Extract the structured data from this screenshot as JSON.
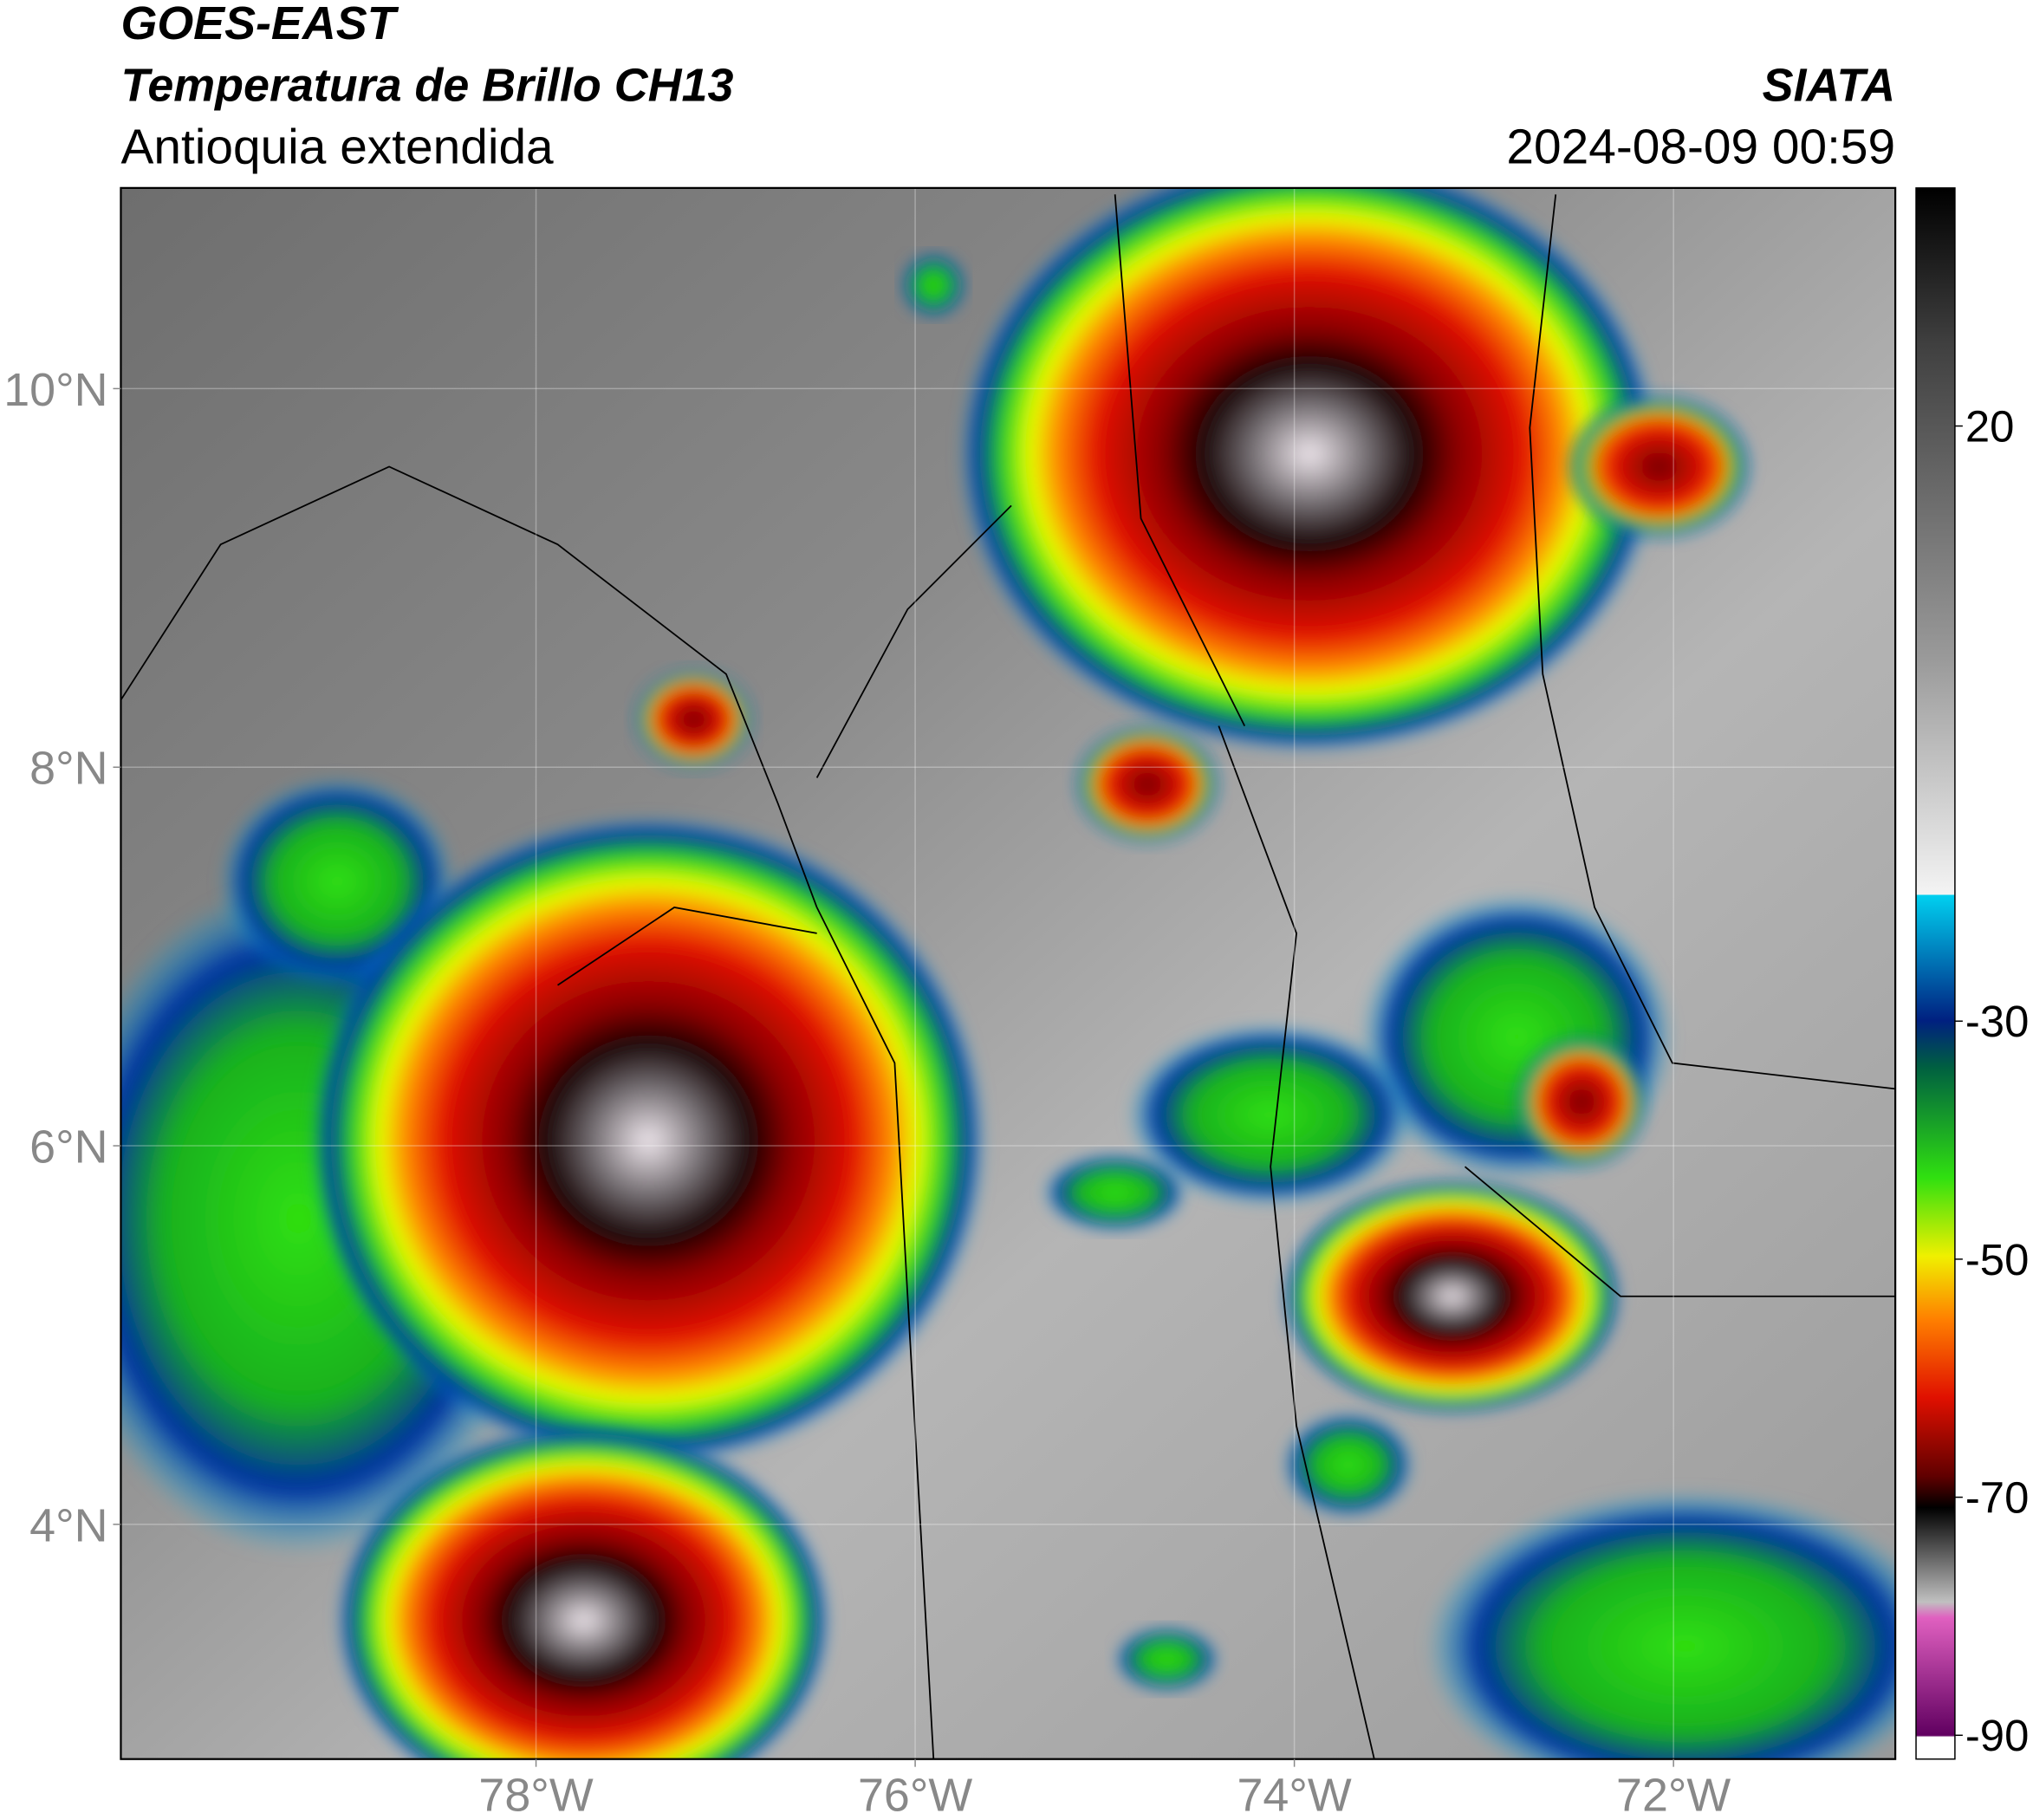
{
  "header": {
    "title1": "GOES-EAST",
    "title2": "Temperatura de Brillo CH13",
    "subtitle": "Antioquia extendida",
    "org": "SIATA",
    "datetime": "2024-08-09 00:59"
  },
  "map": {
    "xlim": [
      -80.19,
      -70.83
    ],
    "ylim": [
      2.76,
      11.06
    ],
    "lon_ticks": [
      {
        "value": -78,
        "label": "78°W"
      },
      {
        "value": -76,
        "label": "76°W"
      },
      {
        "value": -74,
        "label": "74°W"
      },
      {
        "value": -72,
        "label": "72°W"
      }
    ],
    "lat_ticks": [
      {
        "value": 10,
        "label": "10°N"
      },
      {
        "value": 8,
        "label": "8°N"
      },
      {
        "value": 6,
        "label": "6°N"
      },
      {
        "value": 4,
        "label": "4°N"
      }
    ]
  },
  "colorbar": {
    "range": [
      -92,
      40
    ],
    "ticks": [
      20,
      -30,
      -50,
      -70,
      -90
    ]
  }
}
